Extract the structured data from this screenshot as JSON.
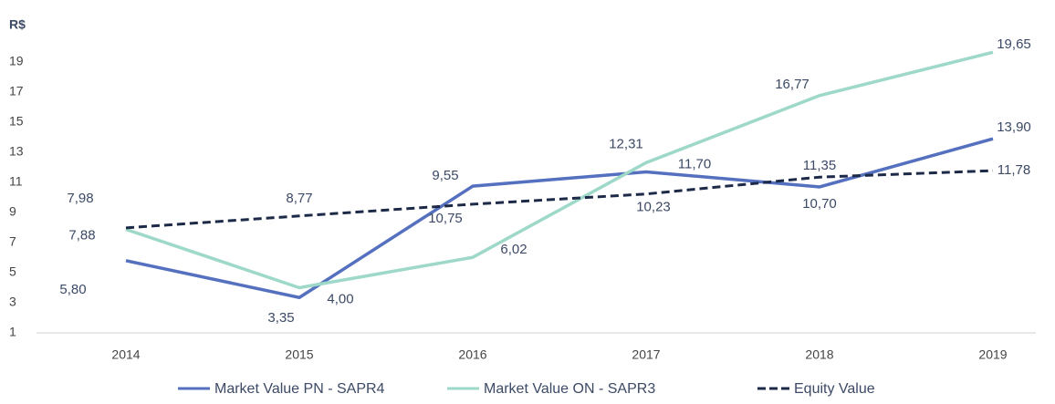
{
  "chart_data": {
    "type": "line",
    "y_label": "R$",
    "categories": [
      "2014",
      "2015",
      "2016",
      "2017",
      "2018",
      "2019"
    ],
    "series": [
      {
        "name": "Market Value PN - SAPR4",
        "color": "#5470bf",
        "dashed": false,
        "values": [
          5.8,
          3.35,
          10.75,
          11.7,
          10.7,
          13.9
        ],
        "value_labels": [
          "5,80",
          "3,35",
          "10,75",
          "11,70",
          "10,70",
          "13,90"
        ]
      },
      {
        "name": "Market Value ON - SAPR3",
        "color": "#9dd8c8",
        "dashed": false,
        "values": [
          7.88,
          4.0,
          6.02,
          12.31,
          16.77,
          19.65
        ],
        "value_labels": [
          "7,88",
          "4,00",
          "6,02",
          "12,31",
          "16,77",
          "19,65"
        ]
      },
      {
        "name": "Equity Value",
        "color": "#1c2a48",
        "dashed": true,
        "values": [
          7.98,
          8.77,
          9.55,
          10.23,
          11.35,
          11.78
        ],
        "value_labels": [
          "7,98",
          "8,77",
          "9,55",
          "10,23",
          "11,35",
          "11,78"
        ]
      }
    ],
    "ylim": [
      1,
      20
    ],
    "yticks": [
      1,
      3,
      5,
      7,
      9,
      11,
      13,
      15,
      17,
      19
    ]
  }
}
